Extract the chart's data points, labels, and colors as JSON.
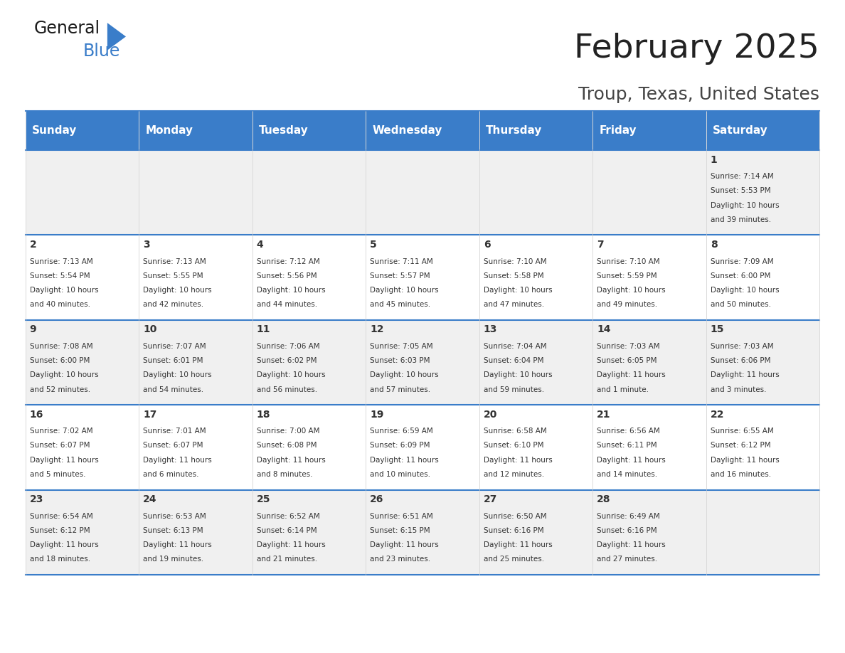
{
  "title": "February 2025",
  "subtitle": "Troup, Texas, United States",
  "header_bg": "#3A7DC9",
  "header_text_color": "#FFFFFF",
  "day_names": [
    "Sunday",
    "Monday",
    "Tuesday",
    "Wednesday",
    "Thursday",
    "Friday",
    "Saturday"
  ],
  "row_bg_odd": "#FFFFFF",
  "row_bg_even": "#F0F0F0",
  "border_color": "#3A7DC9",
  "grid_color": "#CCCCCC",
  "days": [
    {
      "date": 1,
      "col": 6,
      "row": 0,
      "sunrise": "7:14 AM",
      "sunset": "5:53 PM",
      "daylight": "10 hours and 39 minutes"
    },
    {
      "date": 2,
      "col": 0,
      "row": 1,
      "sunrise": "7:13 AM",
      "sunset": "5:54 PM",
      "daylight": "10 hours and 40 minutes"
    },
    {
      "date": 3,
      "col": 1,
      "row": 1,
      "sunrise": "7:13 AM",
      "sunset": "5:55 PM",
      "daylight": "10 hours and 42 minutes"
    },
    {
      "date": 4,
      "col": 2,
      "row": 1,
      "sunrise": "7:12 AM",
      "sunset": "5:56 PM",
      "daylight": "10 hours and 44 minutes"
    },
    {
      "date": 5,
      "col": 3,
      "row": 1,
      "sunrise": "7:11 AM",
      "sunset": "5:57 PM",
      "daylight": "10 hours and 45 minutes"
    },
    {
      "date": 6,
      "col": 4,
      "row": 1,
      "sunrise": "7:10 AM",
      "sunset": "5:58 PM",
      "daylight": "10 hours and 47 minutes"
    },
    {
      "date": 7,
      "col": 5,
      "row": 1,
      "sunrise": "7:10 AM",
      "sunset": "5:59 PM",
      "daylight": "10 hours and 49 minutes"
    },
    {
      "date": 8,
      "col": 6,
      "row": 1,
      "sunrise": "7:09 AM",
      "sunset": "6:00 PM",
      "daylight": "10 hours and 50 minutes"
    },
    {
      "date": 9,
      "col": 0,
      "row": 2,
      "sunrise": "7:08 AM",
      "sunset": "6:00 PM",
      "daylight": "10 hours and 52 minutes"
    },
    {
      "date": 10,
      "col": 1,
      "row": 2,
      "sunrise": "7:07 AM",
      "sunset": "6:01 PM",
      "daylight": "10 hours and 54 minutes"
    },
    {
      "date": 11,
      "col": 2,
      "row": 2,
      "sunrise": "7:06 AM",
      "sunset": "6:02 PM",
      "daylight": "10 hours and 56 minutes"
    },
    {
      "date": 12,
      "col": 3,
      "row": 2,
      "sunrise": "7:05 AM",
      "sunset": "6:03 PM",
      "daylight": "10 hours and 57 minutes"
    },
    {
      "date": 13,
      "col": 4,
      "row": 2,
      "sunrise": "7:04 AM",
      "sunset": "6:04 PM",
      "daylight": "10 hours and 59 minutes"
    },
    {
      "date": 14,
      "col": 5,
      "row": 2,
      "sunrise": "7:03 AM",
      "sunset": "6:05 PM",
      "daylight": "11 hours and 1 minute"
    },
    {
      "date": 15,
      "col": 6,
      "row": 2,
      "sunrise": "7:03 AM",
      "sunset": "6:06 PM",
      "daylight": "11 hours and 3 minutes"
    },
    {
      "date": 16,
      "col": 0,
      "row": 3,
      "sunrise": "7:02 AM",
      "sunset": "6:07 PM",
      "daylight": "11 hours and 5 minutes"
    },
    {
      "date": 17,
      "col": 1,
      "row": 3,
      "sunrise": "7:01 AM",
      "sunset": "6:07 PM",
      "daylight": "11 hours and 6 minutes"
    },
    {
      "date": 18,
      "col": 2,
      "row": 3,
      "sunrise": "7:00 AM",
      "sunset": "6:08 PM",
      "daylight": "11 hours and 8 minutes"
    },
    {
      "date": 19,
      "col": 3,
      "row": 3,
      "sunrise": "6:59 AM",
      "sunset": "6:09 PM",
      "daylight": "11 hours and 10 minutes"
    },
    {
      "date": 20,
      "col": 4,
      "row": 3,
      "sunrise": "6:58 AM",
      "sunset": "6:10 PM",
      "daylight": "11 hours and 12 minutes"
    },
    {
      "date": 21,
      "col": 5,
      "row": 3,
      "sunrise": "6:56 AM",
      "sunset": "6:11 PM",
      "daylight": "11 hours and 14 minutes"
    },
    {
      "date": 22,
      "col": 6,
      "row": 3,
      "sunrise": "6:55 AM",
      "sunset": "6:12 PM",
      "daylight": "11 hours and 16 minutes"
    },
    {
      "date": 23,
      "col": 0,
      "row": 4,
      "sunrise": "6:54 AM",
      "sunset": "6:12 PM",
      "daylight": "11 hours and 18 minutes"
    },
    {
      "date": 24,
      "col": 1,
      "row": 4,
      "sunrise": "6:53 AM",
      "sunset": "6:13 PM",
      "daylight": "11 hours and 19 minutes"
    },
    {
      "date": 25,
      "col": 2,
      "row": 4,
      "sunrise": "6:52 AM",
      "sunset": "6:14 PM",
      "daylight": "11 hours and 21 minutes"
    },
    {
      "date": 26,
      "col": 3,
      "row": 4,
      "sunrise": "6:51 AM",
      "sunset": "6:15 PM",
      "daylight": "11 hours and 23 minutes"
    },
    {
      "date": 27,
      "col": 4,
      "row": 4,
      "sunrise": "6:50 AM",
      "sunset": "6:16 PM",
      "daylight": "11 hours and 25 minutes"
    },
    {
      "date": 28,
      "col": 5,
      "row": 4,
      "sunrise": "6:49 AM",
      "sunset": "6:16 PM",
      "daylight": "11 hours and 27 minutes"
    }
  ],
  "logo_text_general": "General",
  "logo_text_blue": "Blue",
  "logo_color_general": "#1a1a1a",
  "logo_color_blue": "#3A7DC9",
  "logo_triangle_color": "#3A7DC9"
}
